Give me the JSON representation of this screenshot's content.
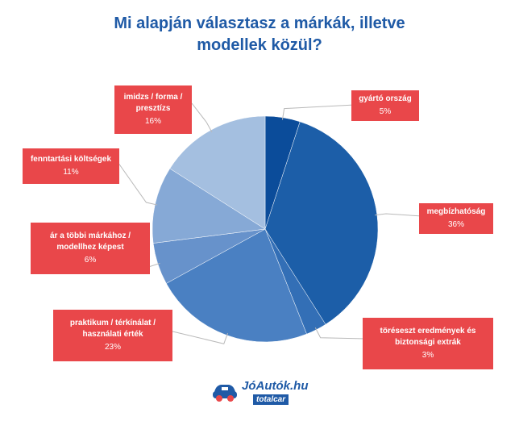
{
  "title_line1": "Mi alapján választasz a márkák, illetve",
  "title_line2": "modellek közül?",
  "chart_data": {
    "type": "pie",
    "title": "Mi alapján választasz a márkák, illetve modellek közül?",
    "slices": [
      {
        "label": "gyártó ország",
        "value": 5,
        "value_label": "5%",
        "color": "#0b4c9a"
      },
      {
        "label": "megbízhatóság",
        "value": 36,
        "value_label": "36%",
        "color": "#1c5ea8"
      },
      {
        "label": "töréseszt eredmények és\nbiztonsági extrák",
        "value": 3,
        "value_label": "3%",
        "color": "#336fb6"
      },
      {
        "label": "praktikum / térkínálat /\nhasználati érték",
        "value": 23,
        "value_label": "23%",
        "color": "#4a80c2"
      },
      {
        "label": "ár a többi márkához /\nmodellhez képest",
        "value": 6,
        "value_label": "6%",
        "color": "#6792cb"
      },
      {
        "label": "fenntartási költségek",
        "value": 11,
        "value_label": "11%",
        "color": "#86a9d6"
      },
      {
        "label": "imidzs / forma /\npresztízs",
        "value": 16,
        "value_label": "16%",
        "color": "#a4bfe0"
      }
    ]
  },
  "logo": {
    "brand": "JóAutók.hu",
    "sub": "totalcar"
  }
}
